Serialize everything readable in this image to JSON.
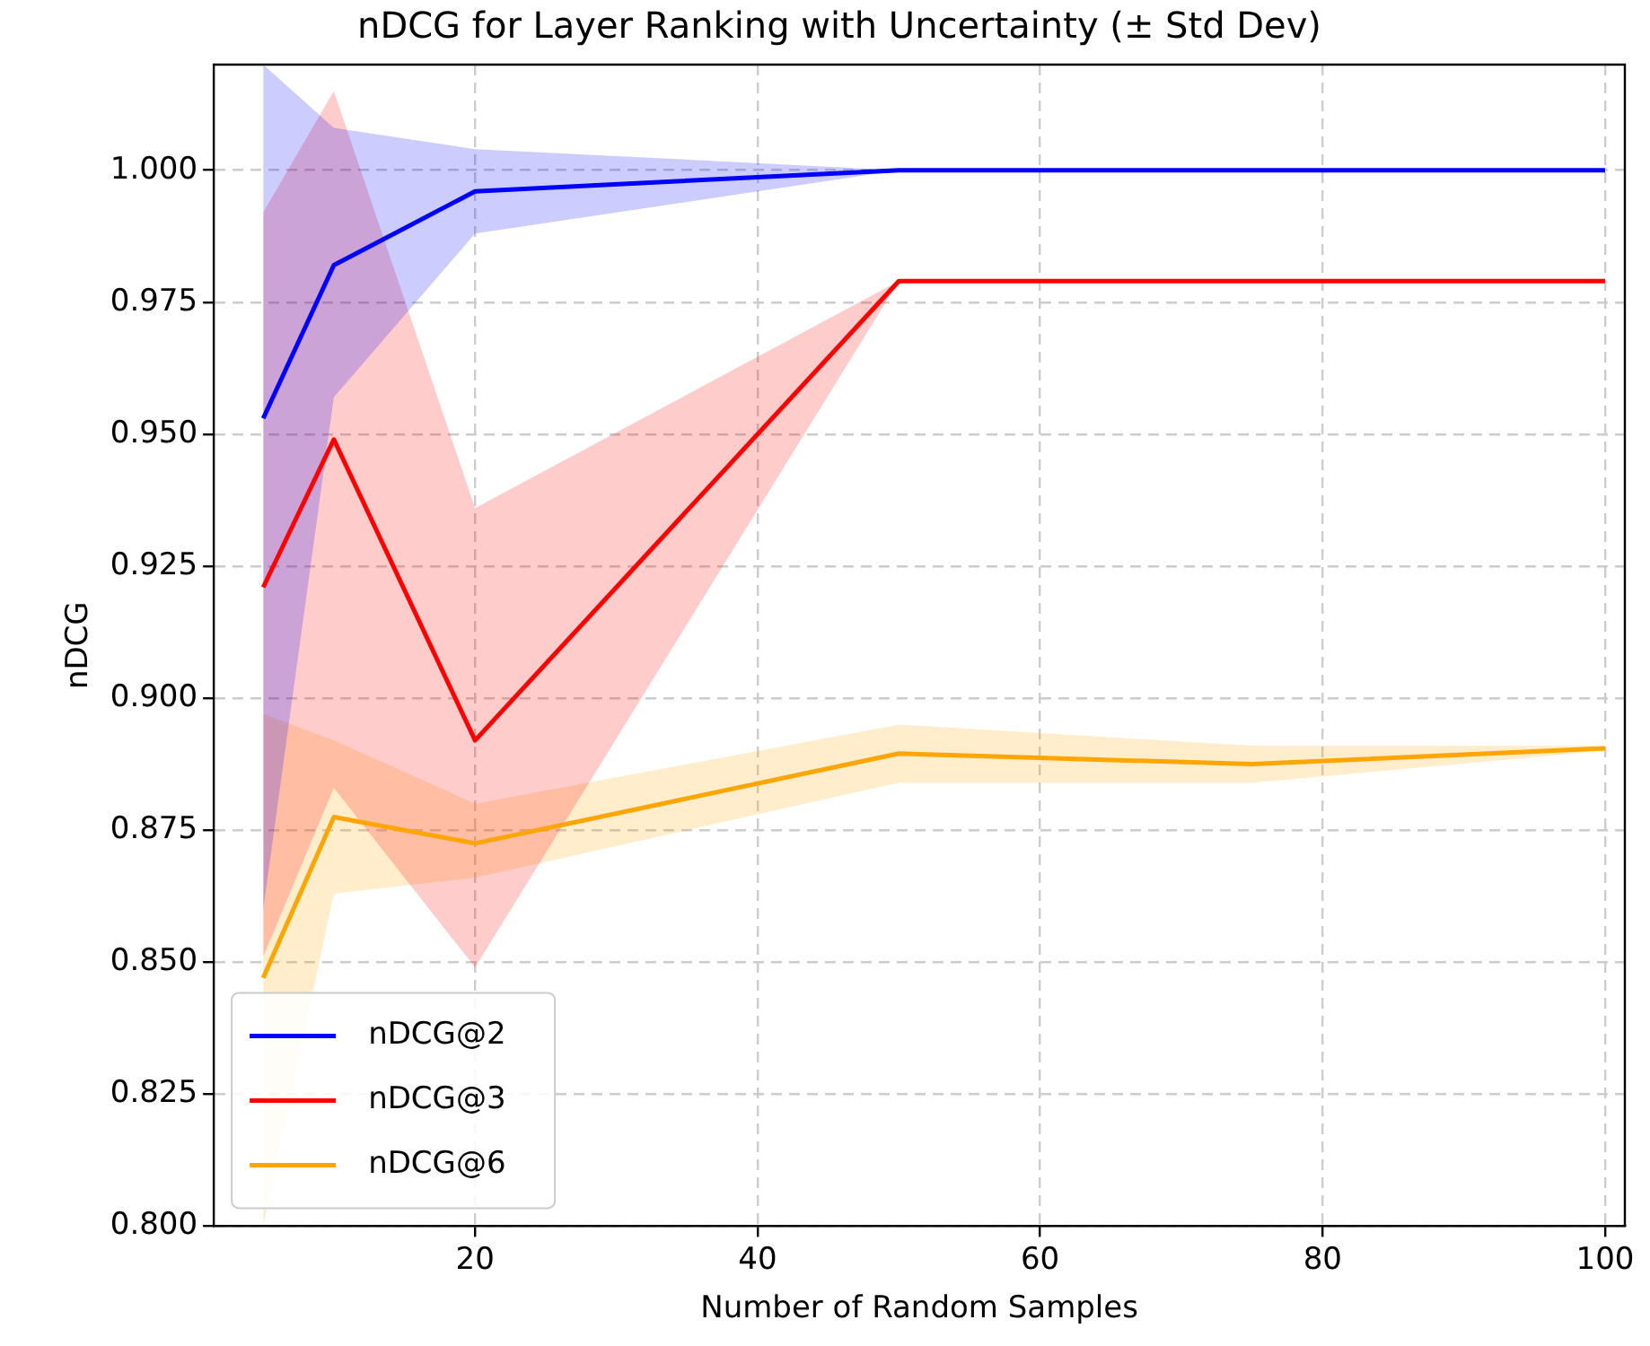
{
  "chart_data": {
    "type": "line",
    "title": "nDCG for Layer Ranking with Uncertainty (± Std Dev)",
    "xlabel": "Number of Random Samples",
    "ylabel": "nDCG",
    "x": [
      5,
      10,
      20,
      50,
      75,
      100
    ],
    "series": [
      {
        "name": "nDCG@2",
        "color": "#0000ff",
        "values": [
          0.953,
          0.982,
          0.996,
          1.0,
          1.0,
          1.0
        ],
        "lower": [
          0.86,
          0.957,
          0.988,
          1.0,
          1.0,
          1.0
        ],
        "upper": [
          1.02,
          1.008,
          1.004,
          1.0,
          1.0,
          1.0
        ]
      },
      {
        "name": "nDCG@3",
        "color": "#ff0000",
        "values": [
          0.921,
          0.949,
          0.892,
          0.979,
          0.979,
          0.979
        ],
        "lower": [
          0.851,
          0.883,
          0.849,
          0.979,
          0.979,
          0.979
        ],
        "upper": [
          0.992,
          1.015,
          0.936,
          0.979,
          0.979,
          0.979
        ]
      },
      {
        "name": "nDCG@6",
        "color": "#ffa500",
        "values": [
          0.847,
          0.8775,
          0.8725,
          0.8895,
          0.8875,
          0.8905
        ],
        "lower": [
          0.8,
          0.863,
          0.866,
          0.884,
          0.884,
          0.89
        ],
        "upper": [
          0.897,
          0.892,
          0.88,
          0.895,
          0.891,
          0.891
        ]
      }
    ],
    "xlim": [
      1.5,
      101.4
    ],
    "xticks": [
      20,
      40,
      60,
      80,
      100
    ],
    "ylim": [
      0.8,
      1.02
    ],
    "yticks": [
      {
        "value": 0.8,
        "label": "0.800"
      },
      {
        "value": 0.825,
        "label": "0.825"
      },
      {
        "value": 0.85,
        "label": "0.850"
      },
      {
        "value": 0.875,
        "label": "0.875"
      },
      {
        "value": 0.9,
        "label": "0.900"
      },
      {
        "value": 0.925,
        "label": "0.925"
      },
      {
        "value": 0.95,
        "label": "0.950"
      },
      {
        "value": 0.975,
        "label": "0.975"
      },
      {
        "value": 1.0,
        "label": "1.000"
      }
    ],
    "grid": true,
    "legend": "bottom left",
    "line_style": "solid",
    "marker": "none"
  }
}
